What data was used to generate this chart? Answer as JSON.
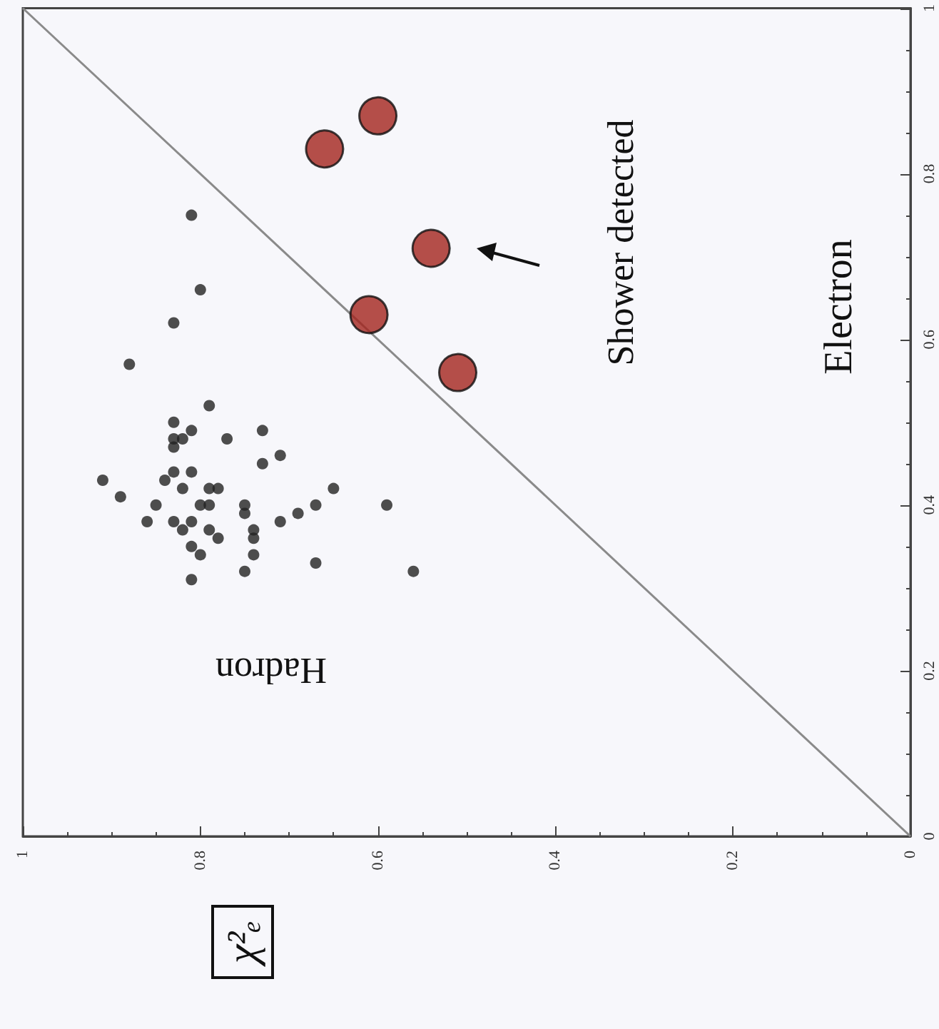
{
  "chart_data": {
    "type": "scatter",
    "annotations": [
      "Hadron",
      "Shower detected",
      "Electron",
      "χ²ₑ"
    ],
    "xlim": [
      1,
      0
    ],
    "xticks": [
      1,
      0.8,
      0.6,
      0.4,
      0.2,
      0
    ],
    "ylim": [
      0,
      1
    ],
    "yticks": [
      0,
      0.2,
      0.4,
      0.6,
      0.8,
      1
    ],
    "grid": false,
    "marker": "circle",
    "series": [
      {
        "type": "line",
        "color": "#8a8a8a",
        "marker": "none",
        "x": [
          0,
          1
        ],
        "values": [
          0,
          1
        ]
      },
      {
        "color": "#222222",
        "values": [
          0.75,
          0.66,
          0.62,
          0.57,
          0.52,
          0.5,
          0.49,
          0.48,
          0.48,
          0.48,
          0.49,
          0.47,
          0.46,
          0.45,
          0.44,
          0.44,
          0.43,
          0.43,
          0.42,
          0.42,
          0.42,
          0.42,
          0.41,
          0.4,
          0.4,
          0.4,
          0.4,
          0.4,
          0.4,
          0.39,
          0.38,
          0.38,
          0.39,
          0.38,
          0.38,
          0.37,
          0.37,
          0.37,
          0.36,
          0.36,
          0.35,
          0.34,
          0.34,
          0.33,
          0.32,
          0.31,
          0.32
        ],
        "x": [
          0.81,
          0.8,
          0.83,
          0.88,
          0.79,
          0.83,
          0.81,
          0.83,
          0.82,
          0.77,
          0.73,
          0.83,
          0.71,
          0.73,
          0.83,
          0.81,
          0.91,
          0.84,
          0.82,
          0.79,
          0.78,
          0.65,
          0.89,
          0.85,
          0.8,
          0.79,
          0.75,
          0.67,
          0.59,
          0.69,
          0.86,
          0.83,
          0.75,
          0.71,
          0.81,
          0.82,
          0.79,
          0.74,
          0.78,
          0.74,
          0.81,
          0.8,
          0.74,
          0.67,
          0.75,
          0.81,
          0.56
        ]
      },
      {
        "color": "#a3231d",
        "values": [
          0.87,
          0.83,
          0.71,
          0.63,
          0.56
        ],
        "x": [
          0.6,
          0.66,
          0.54,
          0.61,
          0.51
        ]
      }
    ]
  }
}
